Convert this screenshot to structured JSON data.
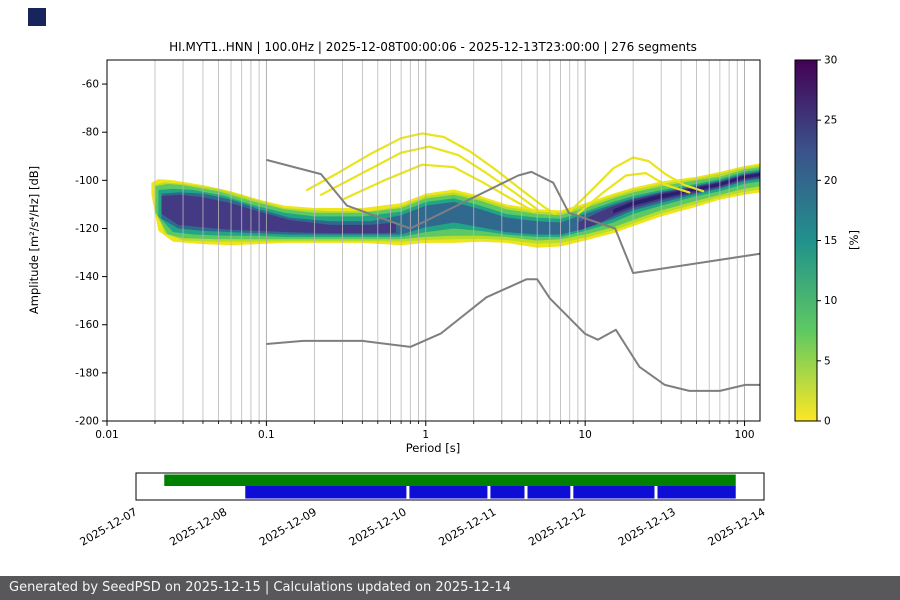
{
  "logo": {
    "color": "#17255c"
  },
  "chart_data": {
    "type": "heatmap",
    "title": "HI.MYT1..HNN | 100.0Hz | 2025-12-08T00:00:06 - 2025-12-13T23:00:00 | 276 segments",
    "xlabel": "Period [s]",
    "ylabel": "Amplitude [m²/s⁴/Hz] [dB]",
    "xscale": "log",
    "xlim": [
      0.01,
      125
    ],
    "ylim": [
      -200,
      -50
    ],
    "xticks": {
      "values": [
        0.01,
        0.1,
        1,
        10,
        100
      ],
      "labels": [
        "0.01",
        "0.1",
        "1",
        "10",
        "100"
      ]
    },
    "yticks": [
      -200,
      -180,
      -160,
      -140,
      -120,
      -100,
      -80,
      -60
    ],
    "grid": {
      "vertical_log": true,
      "horizontal": false
    },
    "colorbar": {
      "label": "[%]",
      "min": 0,
      "max": 30,
      "ticks": [
        0,
        5,
        10,
        15,
        20,
        25,
        30
      ],
      "stops": [
        {
          "v": 0,
          "c": "#fde725"
        },
        {
          "v": 7.5,
          "c": "#5ec962"
        },
        {
          "v": 15,
          "c": "#21918c"
        },
        {
          "v": 22.5,
          "c": "#3b528b"
        },
        {
          "v": 30,
          "c": "#440154"
        }
      ]
    },
    "series": [
      {
        "name": "noise-model-high",
        "color": "#7f7f7f",
        "x": [
          0.1,
          0.22,
          0.32,
          0.8,
          3.8,
          4.6,
          6.3,
          7.9,
          15.4,
          20.0,
          125.0
        ],
        "y": [
          -91.5,
          -97.4,
          -110.5,
          -120.0,
          -98.0,
          -96.5,
          -101.0,
          -113.5,
          -120.0,
          -138.5,
          -130.5
        ]
      },
      {
        "name": "noise-model-low",
        "color": "#7f7f7f",
        "x": [
          0.1,
          0.17,
          0.4,
          0.8,
          1.24,
          2.4,
          4.3,
          5.0,
          6.0,
          10.0,
          12.0,
          15.6,
          21.9,
          31.6,
          45.0,
          70.0,
          101.0,
          125.0
        ],
        "y": [
          -168.0,
          -166.7,
          -166.7,
          -169.2,
          -163.7,
          -148.6,
          -141.1,
          -141.1,
          -149.0,
          -163.8,
          -166.2,
          -162.1,
          -177.5,
          -185.0,
          -187.5,
          -187.5,
          -185.0,
          -185.0
        ]
      }
    ],
    "density_bands": [
      {
        "percent": 1,
        "color": "#efe51c",
        "points": [
          [
            0.019,
            -101,
            -106
          ],
          [
            0.021,
            -99.5,
            -121
          ],
          [
            0.026,
            -100,
            -125.5
          ],
          [
            0.04,
            -102,
            -126.5
          ],
          [
            0.06,
            -104.5,
            -127
          ],
          [
            0.09,
            -108,
            -126.5
          ],
          [
            0.13,
            -110.5,
            -126
          ],
          [
            0.2,
            -111.5,
            -126
          ],
          [
            0.4,
            -111.5,
            -126
          ],
          [
            0.7,
            -109.5,
            -127
          ],
          [
            1.0,
            -105.5,
            -126
          ],
          [
            1.5,
            -103.8,
            -126
          ],
          [
            2.2,
            -106.5,
            -125.5
          ],
          [
            3.2,
            -110,
            -126
          ],
          [
            5,
            -112,
            -128
          ],
          [
            7,
            -112.5,
            -127.5
          ],
          [
            10,
            -109.5,
            -125
          ],
          [
            15,
            -105.5,
            -122
          ],
          [
            20,
            -103,
            -119
          ],
          [
            30,
            -100.5,
            -115
          ],
          [
            50,
            -98.5,
            -111
          ],
          [
            70,
            -96.5,
            -108
          ],
          [
            100,
            -94,
            -106
          ],
          [
            125,
            -93,
            -105
          ]
        ]
      },
      {
        "percent": 5,
        "color": "#b8de29",
        "points": [
          [
            0.02,
            -102,
            -111
          ],
          [
            0.023,
            -100.8,
            -122
          ],
          [
            0.03,
            -101.5,
            -125
          ],
          [
            0.05,
            -103.5,
            -125.5
          ],
          [
            0.08,
            -107.5,
            -125.5
          ],
          [
            0.13,
            -111.5,
            -125.3
          ],
          [
            0.25,
            -112.8,
            -125.3
          ],
          [
            0.45,
            -112.8,
            -125.3
          ],
          [
            0.7,
            -110.8,
            -125.5
          ],
          [
            1.0,
            -106.5,
            -124.8
          ],
          [
            1.5,
            -105,
            -124.5
          ],
          [
            2.2,
            -107.5,
            -124.3
          ],
          [
            3.2,
            -111,
            -124.8
          ],
          [
            5,
            -113,
            -126.3
          ],
          [
            7,
            -113.5,
            -126
          ],
          [
            10,
            -110.5,
            -123.8
          ],
          [
            15,
            -106.5,
            -120.8
          ],
          [
            20,
            -104,
            -117.8
          ],
          [
            30,
            -101.5,
            -113.8
          ],
          [
            50,
            -99.3,
            -109.8
          ],
          [
            70,
            -97.3,
            -107
          ],
          [
            100,
            -94.8,
            -104.8
          ],
          [
            125,
            -93.8,
            -103.8
          ]
        ]
      },
      {
        "percent": 10,
        "color": "#5ec962",
        "points": [
          [
            0.02,
            -102.5,
            -113
          ],
          [
            0.024,
            -101.5,
            -122.5
          ],
          [
            0.03,
            -102,
            -124
          ],
          [
            0.05,
            -104.5,
            -124.5
          ],
          [
            0.08,
            -108.5,
            -124.5
          ],
          [
            0.13,
            -112,
            -124.5
          ],
          [
            0.2,
            -113.5,
            -124.5
          ],
          [
            0.4,
            -113.5,
            -124.5
          ],
          [
            0.7,
            -111.5,
            -124.5
          ],
          [
            1.0,
            -107.5,
            -123.5
          ],
          [
            1.5,
            -106,
            -123
          ],
          [
            2.2,
            -108.5,
            -123
          ],
          [
            3.2,
            -112,
            -123.5
          ],
          [
            5,
            -114,
            -125
          ],
          [
            7,
            -114.5,
            -124.5
          ],
          [
            10,
            -111.5,
            -122.5
          ],
          [
            15,
            -107.5,
            -119.5
          ],
          [
            20,
            -105,
            -116.5
          ],
          [
            30,
            -102.5,
            -112.5
          ],
          [
            50,
            -100,
            -108.5
          ],
          [
            70,
            -98.5,
            -106
          ],
          [
            100,
            -95.5,
            -103.5
          ],
          [
            125,
            -94.5,
            -102.5
          ]
        ]
      },
      {
        "percent": 15,
        "color": "#21a585",
        "points": [
          [
            0.021,
            -104,
            -115
          ],
          [
            0.026,
            -103.5,
            -121.5
          ],
          [
            0.035,
            -104,
            -122.5
          ],
          [
            0.055,
            -106.5,
            -123
          ],
          [
            0.085,
            -110.5,
            -123
          ],
          [
            0.13,
            -113.5,
            -123.5
          ],
          [
            0.2,
            -115,
            -123.5
          ],
          [
            0.4,
            -115,
            -123.5
          ],
          [
            0.7,
            -113,
            -123.5
          ],
          [
            1.0,
            -109,
            -121.5
          ],
          [
            1.5,
            -107.5,
            -120
          ],
          [
            2.2,
            -110.5,
            -121
          ],
          [
            3.2,
            -114,
            -122.5
          ],
          [
            5,
            -115.5,
            -123.5
          ],
          [
            7,
            -116,
            -123.5
          ],
          [
            10,
            -113,
            -121
          ],
          [
            15,
            -109,
            -117.5
          ],
          [
            20,
            -106.5,
            -114
          ],
          [
            30,
            -104,
            -110.5
          ],
          [
            50,
            -101.5,
            -106.5
          ],
          [
            70,
            -99.5,
            -104.5
          ],
          [
            100,
            -96.5,
            -101.5
          ],
          [
            125,
            -95.5,
            -100.5
          ]
        ]
      },
      {
        "percent": 20,
        "color": "#31688e",
        "points": [
          [
            0.022,
            -105.5,
            -116
          ],
          [
            0.028,
            -105,
            -120
          ],
          [
            0.04,
            -105.5,
            -121
          ],
          [
            0.06,
            -108,
            -121.5
          ],
          [
            0.09,
            -112,
            -122
          ],
          [
            0.14,
            -115.5,
            -122.5
          ],
          [
            0.25,
            -117,
            -122.5
          ],
          [
            0.45,
            -117,
            -122.5
          ],
          [
            0.7,
            -114.5,
            -122.5
          ],
          [
            1.0,
            -110.5,
            -119.5
          ],
          [
            1.5,
            -109,
            -117.5
          ],
          [
            2.2,
            -112,
            -119.5
          ],
          [
            3.2,
            -115.5,
            -121.5
          ],
          [
            5,
            -117,
            -122.5
          ],
          [
            7,
            -117.5,
            -122.5
          ],
          [
            10,
            -114,
            -120
          ],
          [
            15,
            -110,
            -116
          ],
          [
            20,
            -107.5,
            -112.5
          ],
          [
            30,
            -104.8,
            -109.3
          ],
          [
            50,
            -102.2,
            -105.6
          ],
          [
            70,
            -100.2,
            -103.4
          ],
          [
            100,
            -97.2,
            -100.4
          ],
          [
            125,
            -96.2,
            -99.4
          ]
        ]
      },
      {
        "percent": 25,
        "color": "#443983",
        "points": [
          [
            0.022,
            -106.5,
            -114
          ],
          [
            0.028,
            -106,
            -118.5
          ],
          [
            0.04,
            -107,
            -119.5
          ],
          [
            0.06,
            -109.5,
            -120.5
          ],
          [
            0.09,
            -113,
            -121
          ],
          [
            0.14,
            -116.5,
            -121.5
          ],
          [
            0.25,
            -118.5,
            -122
          ],
          [
            0.45,
            -118.5,
            -122
          ],
          [
            0.65,
            -117.5,
            -121.8
          ]
        ]
      },
      {
        "percent": 25,
        "color": "#443983",
        "points": [
          [
            9,
            -117.5,
            -121
          ],
          [
            12,
            -113.5,
            -118
          ],
          [
            15,
            -110.8,
            -114.8
          ],
          [
            20,
            -108,
            -111.5
          ],
          [
            30,
            -105.2,
            -108.3
          ],
          [
            50,
            -102.6,
            -105
          ],
          [
            70,
            -100.6,
            -102.8
          ],
          [
            100,
            -97.6,
            -99.8
          ],
          [
            125,
            -96.6,
            -98.8
          ]
        ]
      },
      {
        "percent": 30,
        "color": "#2c1e6e",
        "points": [
          [
            15,
            -112,
            -113.8
          ],
          [
            20,
            -108.8,
            -110.5
          ],
          [
            30,
            -105.8,
            -107.5
          ],
          [
            50,
            -103,
            -104.3
          ],
          [
            70,
            -101,
            -102.3
          ],
          [
            100,
            -98,
            -99.2
          ],
          [
            125,
            -97,
            -98.2
          ]
        ]
      }
    ],
    "density_arcs": [
      {
        "color": "#e9e41c",
        "width": 2.2,
        "points": [
          [
            0.18,
            -104
          ],
          [
            0.28,
            -97
          ],
          [
            0.45,
            -89
          ],
          [
            0.7,
            -82.5
          ],
          [
            0.95,
            -80.5
          ],
          [
            1.3,
            -82
          ],
          [
            1.9,
            -88
          ],
          [
            2.8,
            -96
          ],
          [
            4,
            -104
          ],
          [
            5.5,
            -111
          ],
          [
            6.5,
            -114
          ]
        ]
      },
      {
        "color": "#e9e41c",
        "width": 2.2,
        "points": [
          [
            0.22,
            -106
          ],
          [
            0.4,
            -97
          ],
          [
            0.7,
            -88.5
          ],
          [
            1.05,
            -86
          ],
          [
            1.6,
            -89.5
          ],
          [
            2.4,
            -97
          ],
          [
            3.6,
            -105
          ],
          [
            5,
            -112
          ]
        ]
      },
      {
        "color": "#e9e41c",
        "width": 2.2,
        "points": [
          [
            0.3,
            -108
          ],
          [
            0.55,
            -100
          ],
          [
            0.95,
            -93.5
          ],
          [
            1.5,
            -94.5
          ],
          [
            2.3,
            -101
          ],
          [
            3.5,
            -108
          ],
          [
            4.8,
            -113
          ]
        ]
      },
      {
        "color": "#e9e41c",
        "width": 2.2,
        "points": [
          [
            8,
            -113
          ],
          [
            11,
            -104
          ],
          [
            15,
            -95
          ],
          [
            20,
            -90.5
          ],
          [
            25,
            -92
          ],
          [
            32,
            -97.5
          ],
          [
            42,
            -102
          ],
          [
            55,
            -104.5
          ]
        ]
      },
      {
        "color": "#e9e41c",
        "width": 2.2,
        "points": [
          [
            9,
            -114
          ],
          [
            13,
            -105
          ],
          [
            18,
            -98
          ],
          [
            24,
            -97
          ],
          [
            32,
            -102
          ],
          [
            45,
            -105
          ]
        ]
      }
    ]
  },
  "timeline": {
    "date_labels": [
      "2025-12-07",
      "2025-12-08",
      "2025-12-09",
      "2025-12-10",
      "2025-12-11",
      "2025-12-12",
      "2025-12-13",
      "2025-12-14"
    ],
    "bars": [
      {
        "name": "green",
        "color": "#008000",
        "row": "top",
        "start": 0.045,
        "end": 0.955
      },
      {
        "name": "blue",
        "color": "#0d0dd6",
        "row": "bottom",
        "start": 0.174,
        "end": 0.955
      }
    ],
    "gaps": [
      0.433,
      0.562,
      0.621,
      0.694,
      0.828
    ]
  },
  "footer": {
    "text": "Generated by SeedPSD on 2025-12-15 | Calculations updated on 2025-12-14"
  }
}
